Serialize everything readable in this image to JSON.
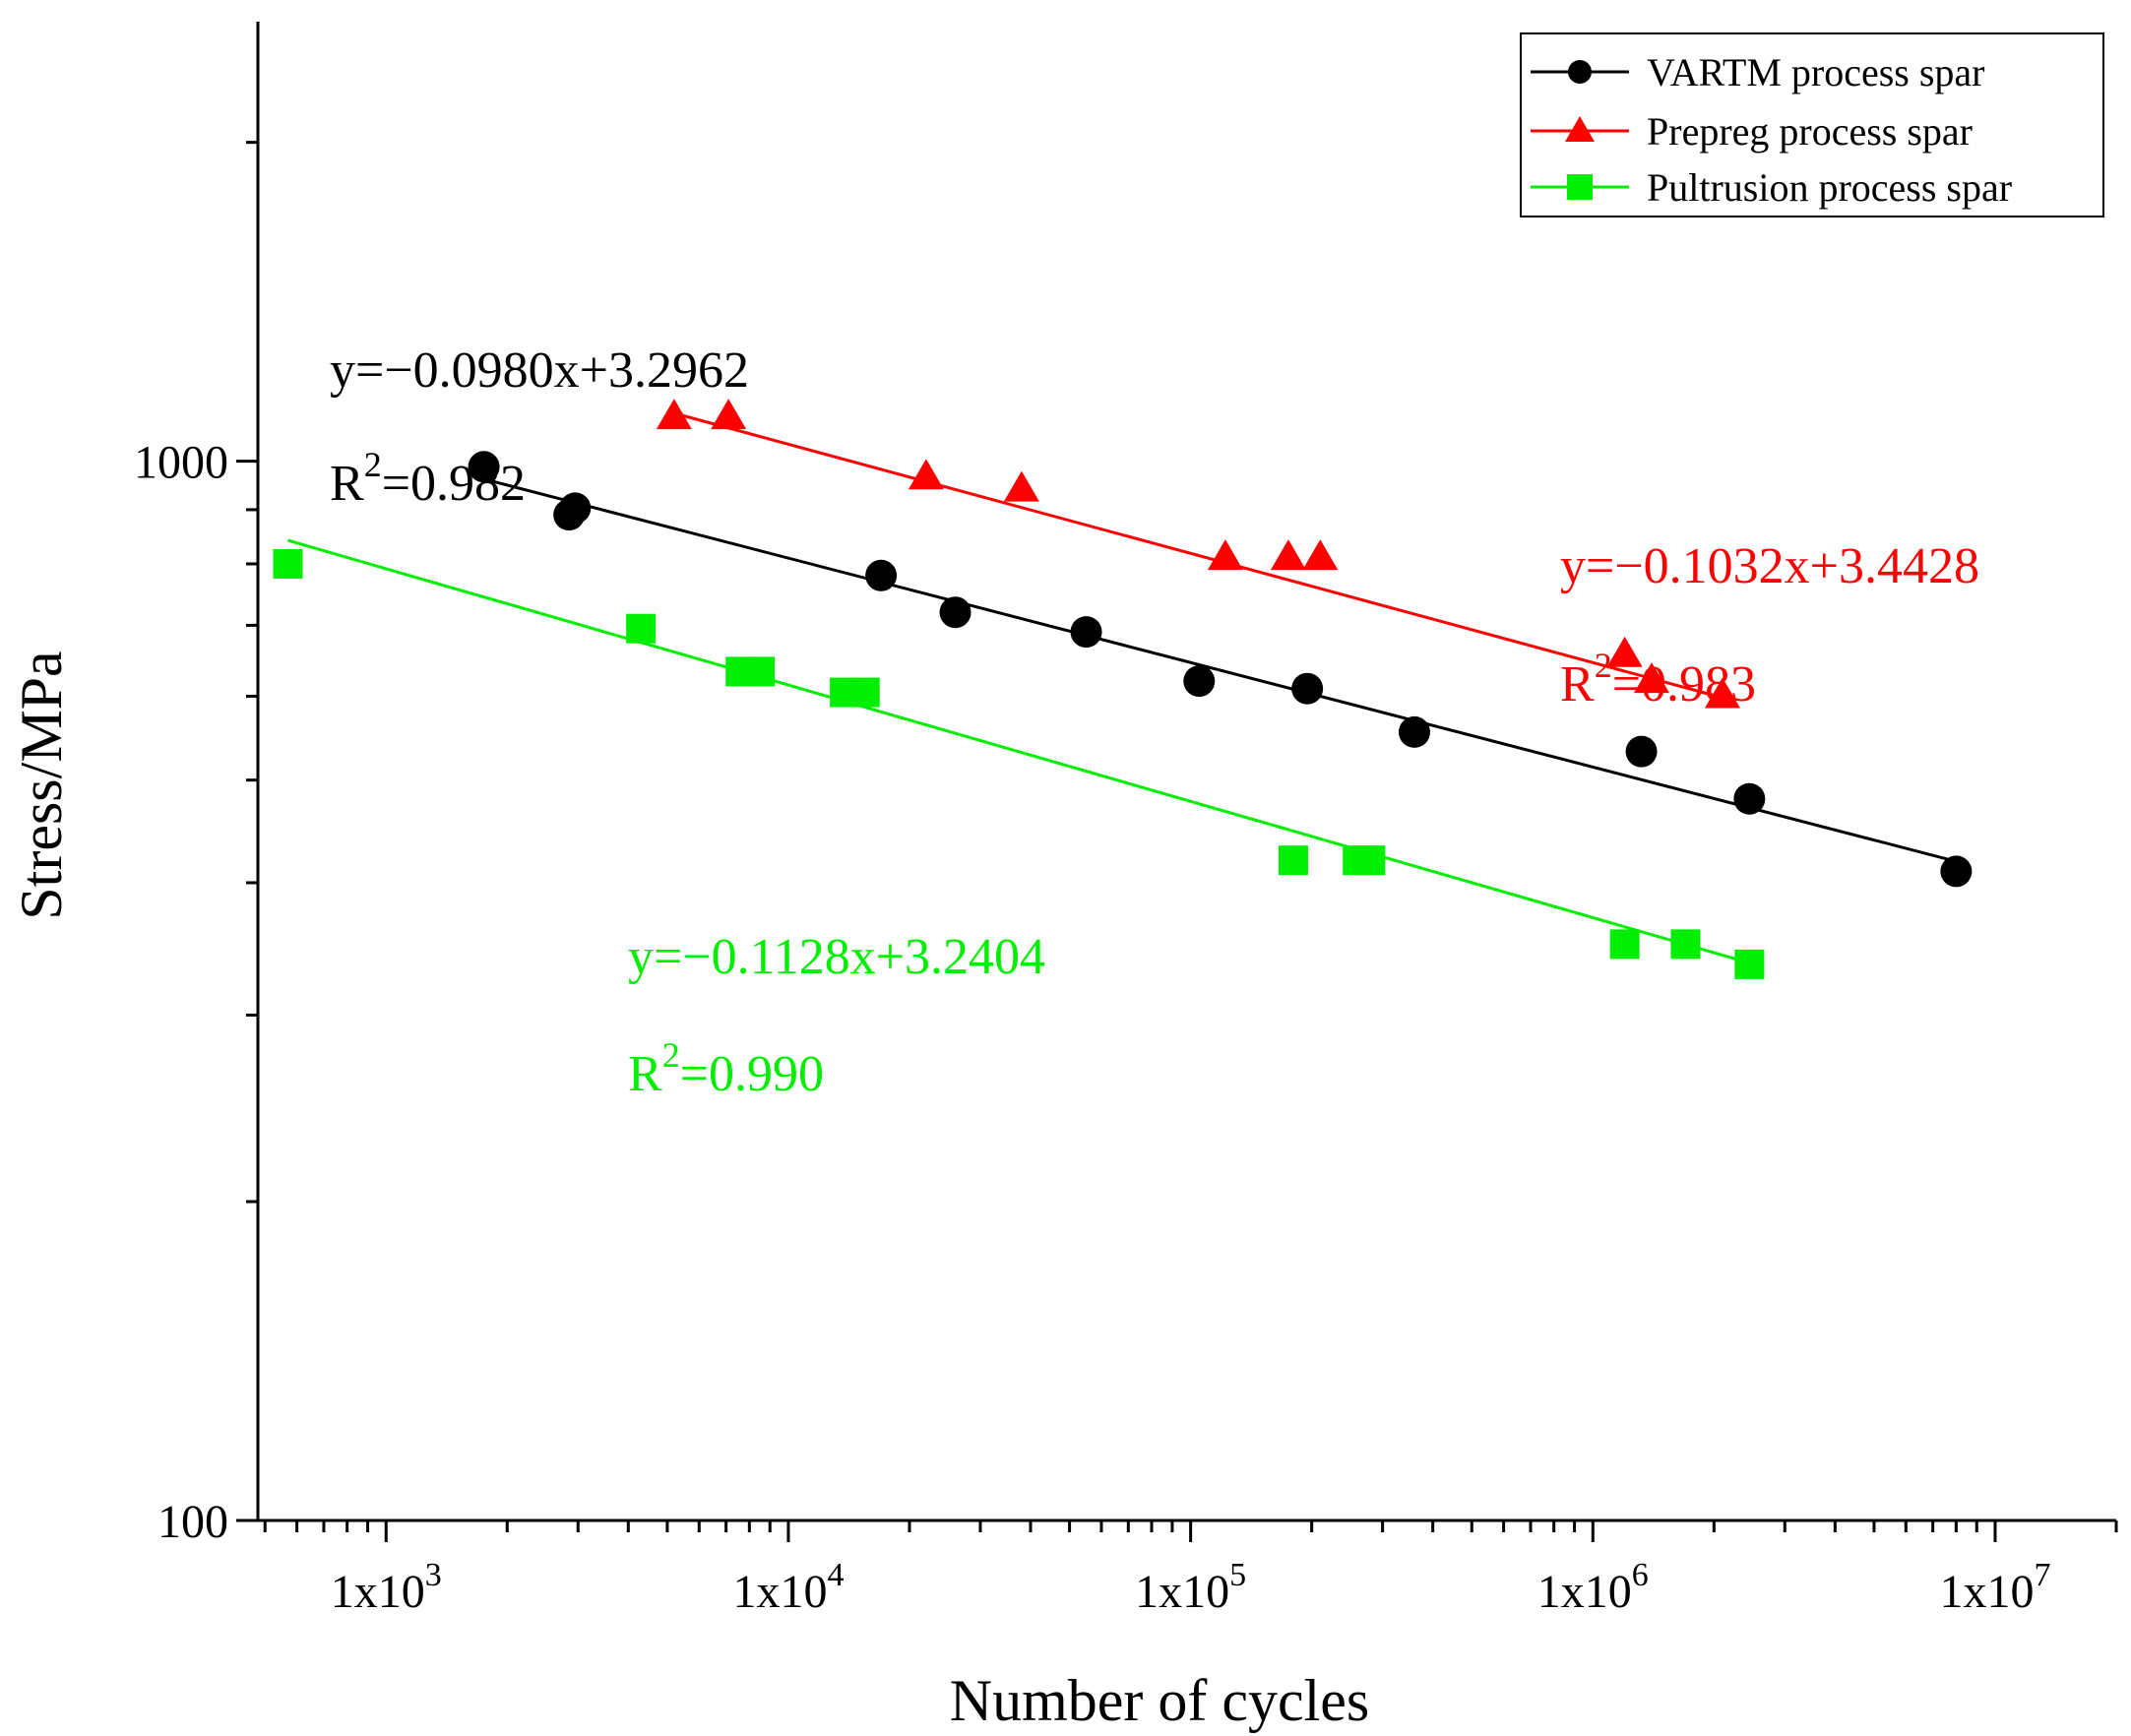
{
  "chart_data": {
    "type": "scatter",
    "title": "",
    "xlabel": "Number of cycles",
    "ylabel": "Stress/MPa",
    "xscale": "log",
    "yscale": "log",
    "xlim": [
      480,
      20000000
    ],
    "ylim": [
      100,
      2600
    ],
    "x_tick_labels": [
      {
        "value": 1000,
        "base": "1x10",
        "exp": "3"
      },
      {
        "value": 10000,
        "base": "1x10",
        "exp": "4"
      },
      {
        "value": 100000,
        "base": "1x10",
        "exp": "5"
      },
      {
        "value": 1000000,
        "base": "1x10",
        "exp": "6"
      },
      {
        "value": 10000000,
        "base": "1x10",
        "exp": "7"
      }
    ],
    "y_tick_labels": [
      {
        "value": 100,
        "label": "100"
      },
      {
        "value": 1000,
        "label": "1000"
      }
    ],
    "legend_position": "top-right",
    "series": [
      {
        "name": "VARTM process spar",
        "color": "#000000",
        "marker": "circle",
        "x": [
          1750,
          2850,
          2950,
          17000,
          26000,
          55000,
          105000,
          195000,
          360000,
          1320000,
          2450000,
          8000000
        ],
        "y": [
          988,
          890,
          903,
          780,
          720,
          690,
          620,
          610,
          555,
          532,
          480,
          410
        ],
        "fit": {
          "x": [
            1750,
            8000000
          ],
          "y": [
            962,
            419
          ]
        },
        "equation": "y=−0.0980x+3.2962",
        "r2_prefix": "R",
        "r2_exp": "2",
        "r2_value": "=0.982"
      },
      {
        "name": "Prepreg process spar",
        "color": "#ff0000",
        "marker": "triangle",
        "x": [
          5200,
          7100,
          22000,
          38000,
          122000,
          175000,
          210000,
          1200000,
          1400000,
          2100000
        ],
        "y": [
          1100,
          1100,
          965,
          940,
          810,
          810,
          810,
          656,
          620,
          600
        ],
        "fit": {
          "x": [
            5200,
            2100000
          ],
          "y": [
            1110,
            598
          ]
        },
        "equation": "y=−0.1032x+3.4428",
        "r2_prefix": "R",
        "r2_exp": "2",
        "r2_value": "=0.983"
      },
      {
        "name": "Pultrusion process spar",
        "color": "#00ee00",
        "marker": "square",
        "x": [
          570,
          4300,
          7600,
          8500,
          13800,
          15500,
          180000,
          260000,
          280000,
          1200000,
          1700000,
          2450000
        ],
        "y": [
          800,
          695,
          633,
          633,
          605,
          605,
          420,
          420,
          420,
          350,
          350,
          335
        ],
        "fit": {
          "x": [
            570,
            2450000
          ],
          "y": [
            842,
            336
          ]
        },
        "equation": "y=−0.1128x+3.2404",
        "r2_prefix": "R",
        "r2_exp": "2",
        "r2_value": "=0.990"
      }
    ]
  }
}
